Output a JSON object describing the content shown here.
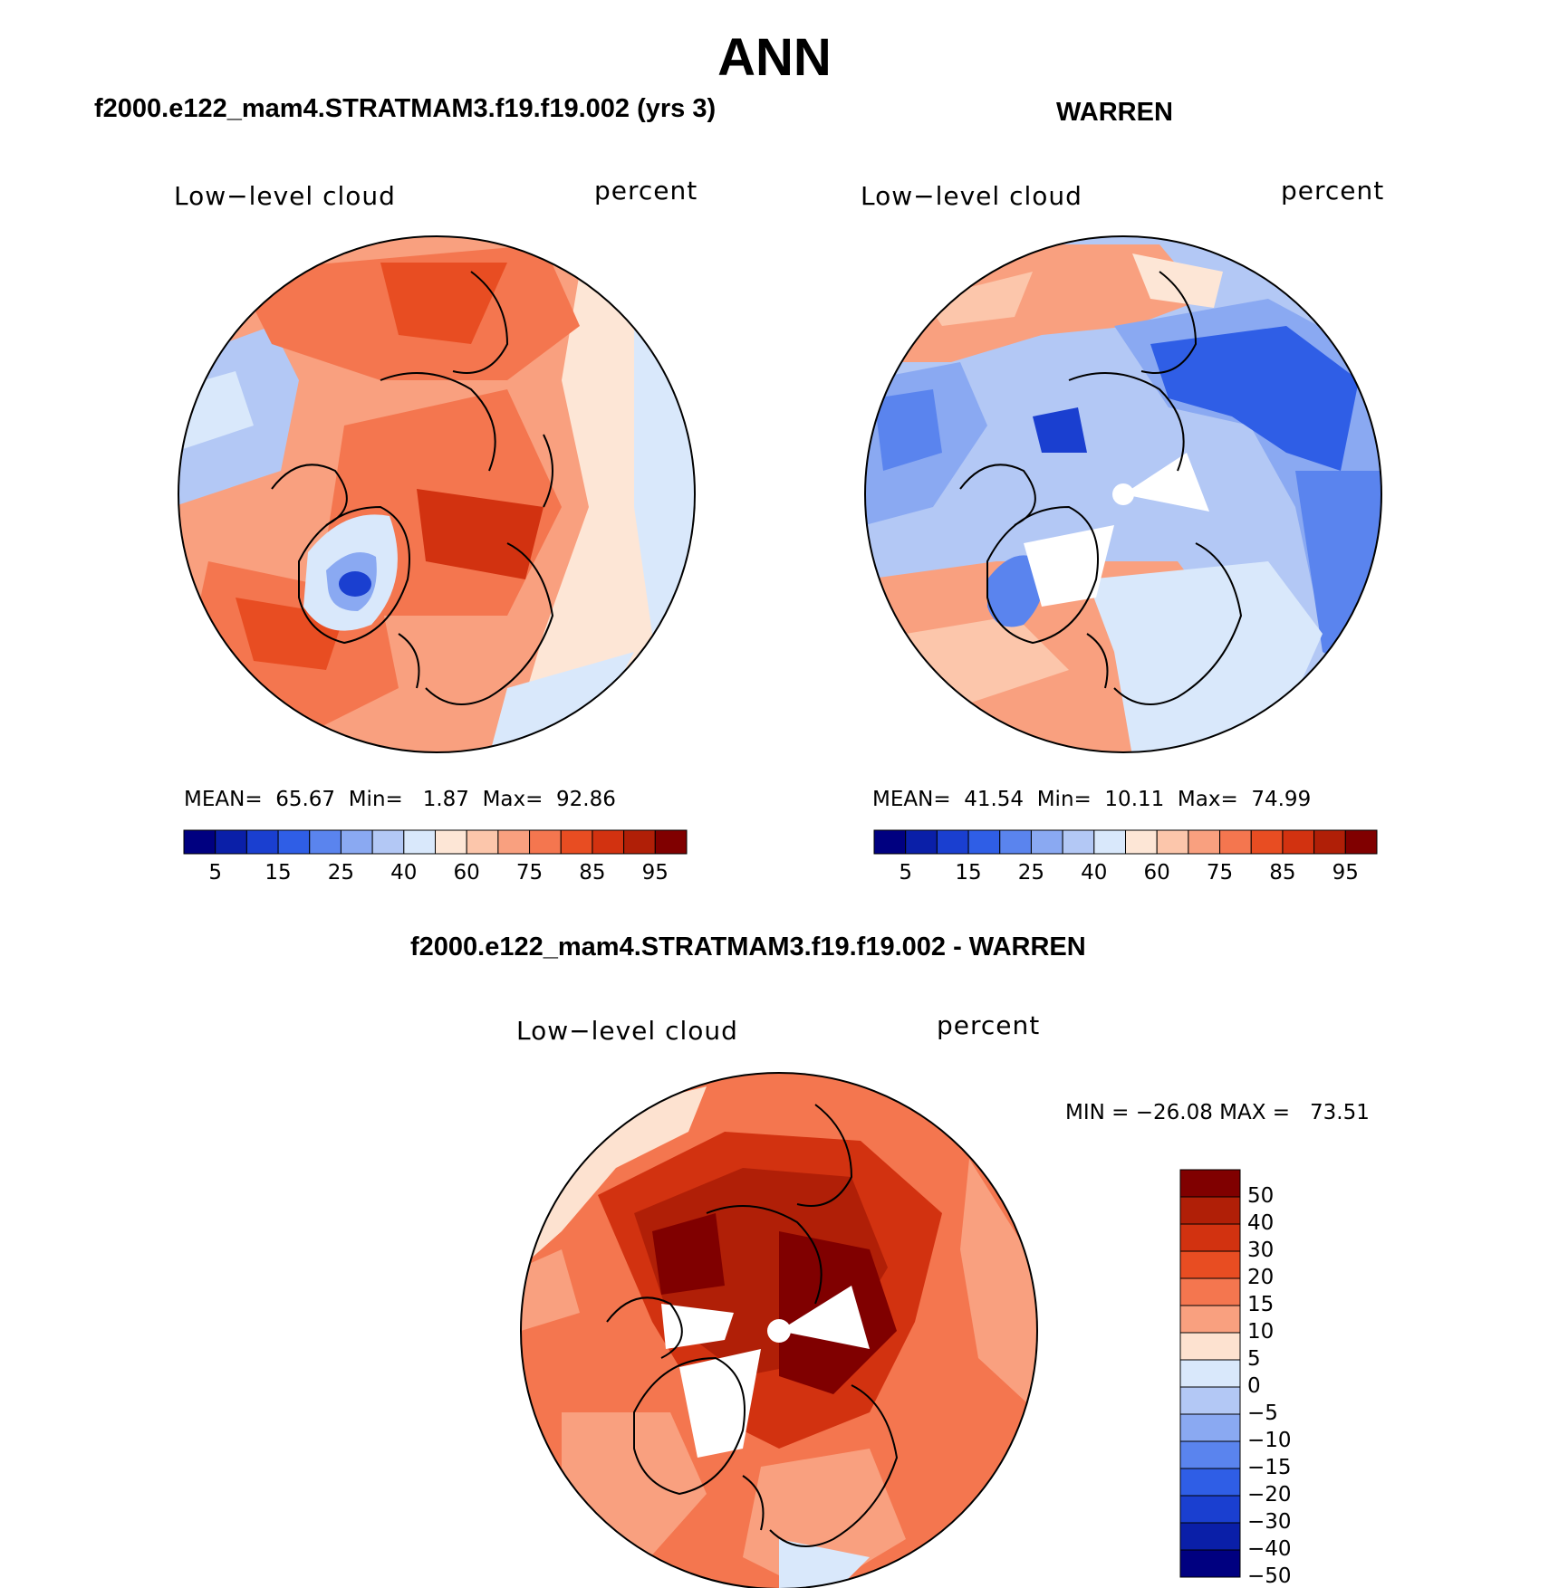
{
  "title": "ANN",
  "panels": [
    {
      "id": "model",
      "title": "f2000.e122_mam4.STRATMAM3.f19.f19.002 (yrs 3)",
      "variable": "Low−level cloud",
      "units": "percent",
      "stats": {
        "mean_label": "MEAN=",
        "mean": "65.67",
        "min_label": "Min=",
        "min": "1.87",
        "max_label": "Max=",
        "max": "92.86"
      },
      "colorbar_ticks": [
        "5",
        "15",
        "25",
        "40",
        "60",
        "75",
        "85",
        "95"
      ]
    },
    {
      "id": "obs",
      "title": "WARREN",
      "variable": "Low−level cloud",
      "units": "percent",
      "stats": {
        "mean_label": "MEAN=",
        "mean": "41.54",
        "min_label": "Min=",
        "min": "10.11",
        "max_label": "Max=",
        "max": "74.99"
      },
      "colorbar_ticks": [
        "5",
        "15",
        "25",
        "40",
        "60",
        "75",
        "85",
        "95"
      ]
    },
    {
      "id": "diff",
      "title": "f2000.e122_mam4.STRATMAM3.f19.f19.002 - WARREN",
      "variable": "Low−level cloud",
      "units": "percent",
      "stats_text": "MIN = −26.08 MAX =   73.51",
      "colorbar_ticks": [
        "50",
        "40",
        "30",
        "20",
        "15",
        "10",
        "5",
        "0",
        "−5",
        "−10",
        "−15",
        "−20",
        "−30",
        "−40",
        "−50"
      ]
    }
  ],
  "colors": {
    "seq": [
      "#000080",
      "#0a1fa8",
      "#1a3fd0",
      "#2f5ee6",
      "#5a84ee",
      "#8aa9f2",
      "#b3c8f5",
      "#d9e8fb",
      "#fde6d6",
      "#fcc6ab",
      "#f9a07f",
      "#f4764f",
      "#e84d22",
      "#d23210",
      "#b01f07",
      "#800000"
    ],
    "div": [
      "#800000",
      "#b01f07",
      "#d23210",
      "#e84d22",
      "#f4764f",
      "#f9a07f",
      "#fde2d0",
      "#d9e8fb",
      "#b3c8f5",
      "#8aa9f2",
      "#5a84ee",
      "#2f5ee6",
      "#1a3fd0",
      "#0a1fa8",
      "#000080"
    ],
    "model_bg": "#f4764f",
    "obs_bg": "#b3c8f5",
    "diff_bg": "#e84d22"
  }
}
